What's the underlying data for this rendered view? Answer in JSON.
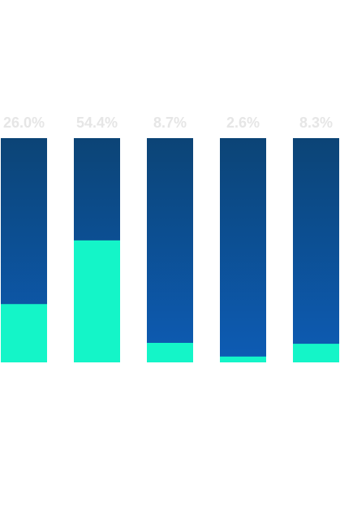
{
  "chart_data": {
    "type": "bar",
    "stacked_percent": true,
    "title": "",
    "xlabel": "",
    "ylabel": "",
    "ylim": [
      0,
      100
    ],
    "grid": false,
    "legend": "none",
    "categories": [
      "",
      "",
      "",
      "",
      ""
    ],
    "values": [
      26.0,
      54.4,
      8.7,
      2.6,
      8.3
    ],
    "labels": [
      "26.0%",
      "54.4%",
      "8.7%",
      "2.6%",
      "8.3%"
    ],
    "colors": {
      "fill": "#14f5c8",
      "track_top": "#0c4476",
      "track_bottom": "#0d5cb5",
      "label": "#e6e6e6"
    }
  }
}
